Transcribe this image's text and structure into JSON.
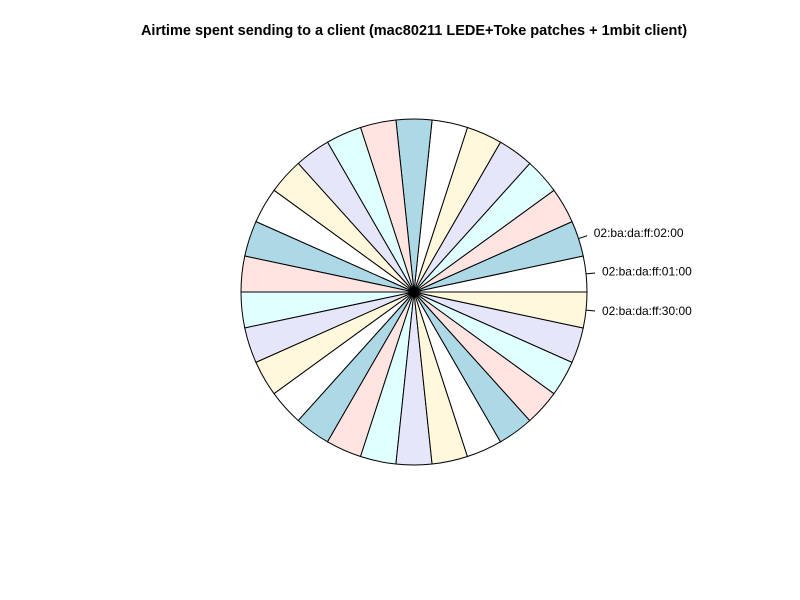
{
  "chart_data": {
    "type": "pie",
    "title": "Airtime spent sending to a client (mac80211 LEDE+Toke patches + 1mbit client)",
    "slice_count": 30,
    "start_angle_deg": 0,
    "direction": "counterclockwise",
    "colors": [
      "#FFFFFF",
      "#ADD8E6",
      "#FFE4E1",
      "#E0FFFF",
      "#E6E6FA",
      "#FFF8DC"
    ],
    "slices": [
      {
        "label": "02:ba:da:ff:01:00",
        "value": 1
      },
      {
        "label": "02:ba:da:ff:02:00",
        "value": 1
      },
      {
        "label": "",
        "value": 1
      },
      {
        "label": "",
        "value": 1
      },
      {
        "label": "",
        "value": 1
      },
      {
        "label": "",
        "value": 1
      },
      {
        "label": "",
        "value": 1
      },
      {
        "label": "",
        "value": 1
      },
      {
        "label": "",
        "value": 1
      },
      {
        "label": "",
        "value": 1
      },
      {
        "label": "",
        "value": 1
      },
      {
        "label": "",
        "value": 1
      },
      {
        "label": "",
        "value": 1
      },
      {
        "label": "",
        "value": 1
      },
      {
        "label": "",
        "value": 1
      },
      {
        "label": "",
        "value": 1
      },
      {
        "label": "",
        "value": 1
      },
      {
        "label": "",
        "value": 1
      },
      {
        "label": "",
        "value": 1
      },
      {
        "label": "",
        "value": 1
      },
      {
        "label": "",
        "value": 1
      },
      {
        "label": "",
        "value": 1
      },
      {
        "label": "",
        "value": 1
      },
      {
        "label": "",
        "value": 1
      },
      {
        "label": "",
        "value": 1
      },
      {
        "label": "",
        "value": 1
      },
      {
        "label": "",
        "value": 1
      },
      {
        "label": "",
        "value": 1
      },
      {
        "label": "",
        "value": 1
      },
      {
        "label": "02:ba:da:ff:30:00",
        "value": 1
      }
    ]
  }
}
